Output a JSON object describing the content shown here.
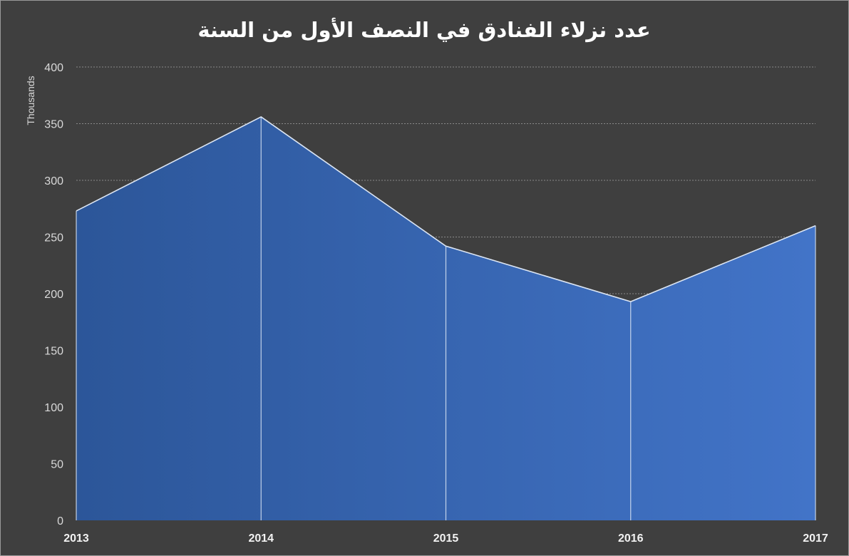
{
  "chart_data": {
    "type": "area",
    "title": "عدد نزلاء الفنادق في النصف الأول من السنة",
    "ylabel": "Thousands",
    "categories": [
      "2013",
      "2014",
      "2015",
      "2016",
      "2017"
    ],
    "series": [
      {
        "values": [
          273,
          356,
          242,
          193,
          260
        ]
      }
    ],
    "ylim": [
      0,
      400
    ],
    "yticks": [
      0,
      50,
      100,
      150,
      200,
      250,
      300,
      350,
      400
    ],
    "grid": true,
    "legend": "none",
    "colors": {
      "background": "#3f3f3f",
      "area_start": "#2c5699",
      "area_end": "#4274c8",
      "line": "#dce6f4",
      "grid": "#8a8a8a",
      "text": "#ffffff"
    }
  }
}
